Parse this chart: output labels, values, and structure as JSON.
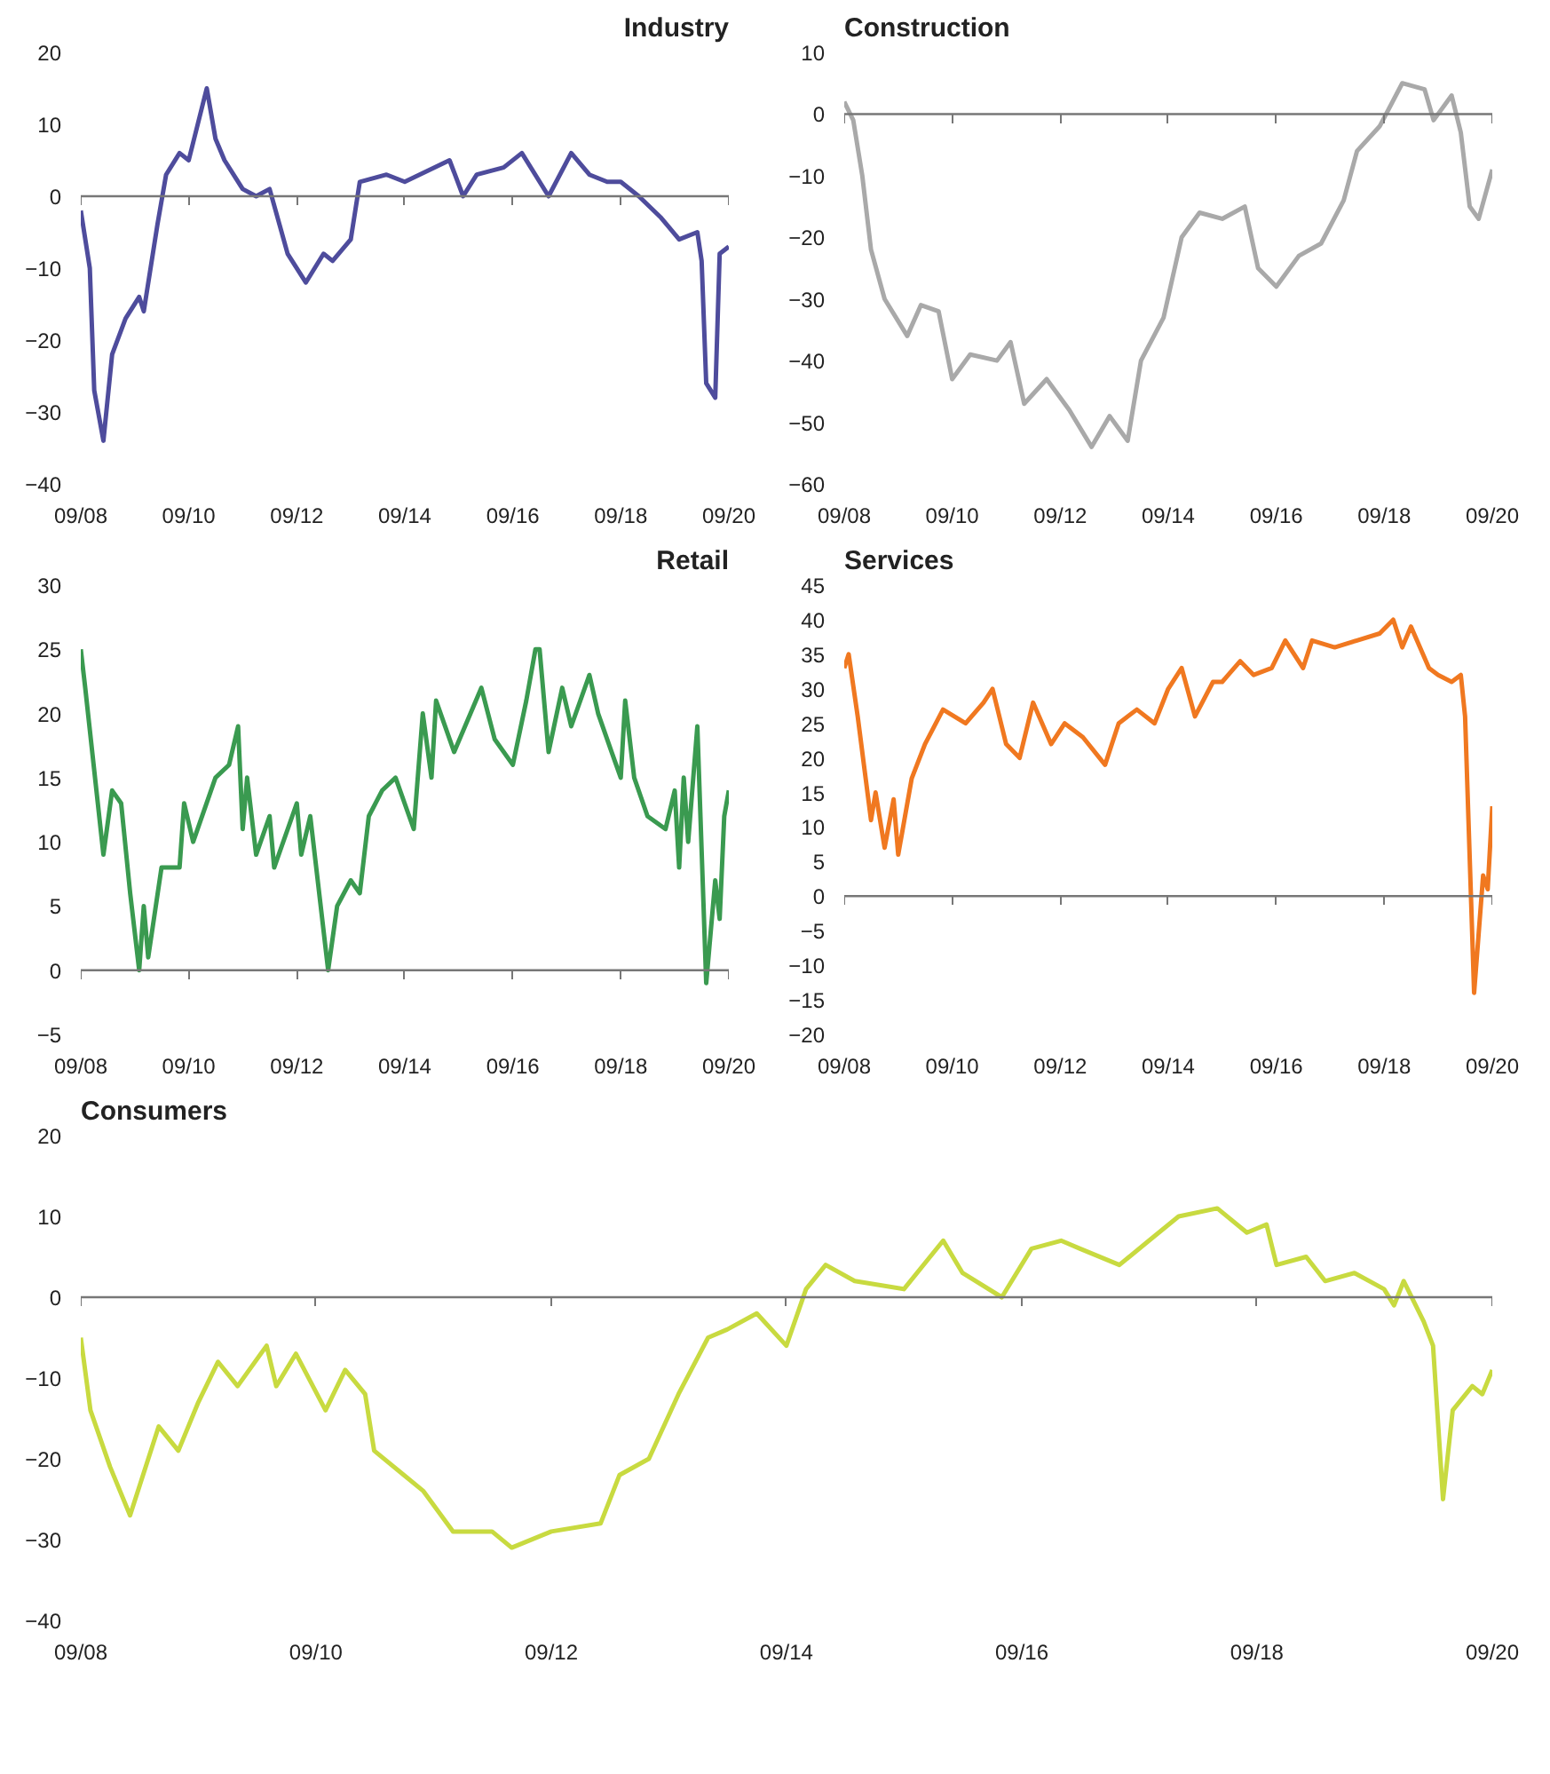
{
  "chart_data": [
    {
      "type": "line",
      "title": "Industry",
      "xlim": [
        "2008-09",
        "2020-09"
      ],
      "ylim": [
        -40,
        20
      ],
      "yticks": [
        -40,
        -30,
        -20,
        -10,
        0,
        10,
        20
      ],
      "xticks": [
        {
          "value": "2008-09",
          "label": "09/08"
        },
        {
          "value": "2010-09",
          "label": "09/10"
        },
        {
          "value": "2012-09",
          "label": "09/12"
        },
        {
          "value": "2014-09",
          "label": "09/14"
        },
        {
          "value": "2016-09",
          "label": "09/16"
        },
        {
          "value": "2018-09",
          "label": "09/18"
        },
        {
          "value": "2020-09",
          "label": "09/20"
        }
      ],
      "grid": false,
      "ref_lines": [
        {
          "axis": "y",
          "value": 0,
          "color": "#777777"
        }
      ],
      "series": [
        {
          "color": "#4e4c9c",
          "x": [
            "2008-09",
            "2008-11",
            "2008-12",
            "2009-02",
            "2009-04",
            "2009-07",
            "2009-10",
            "2009-11",
            "2010-02",
            "2010-04",
            "2010-07",
            "2010-09",
            "2010-11",
            "2011-01",
            "2011-03",
            "2011-05",
            "2011-09",
            "2011-12",
            "2012-03",
            "2012-07",
            "2012-11",
            "2013-03",
            "2013-05",
            "2013-09",
            "2013-11",
            "2014-05",
            "2014-09",
            "2015-07",
            "2015-10",
            "2016-01",
            "2016-07",
            "2016-11",
            "2017-05",
            "2017-10",
            "2018-02",
            "2018-06",
            "2018-09",
            "2019-01",
            "2019-06",
            "2019-10",
            "2020-02",
            "2020-03",
            "2020-04",
            "2020-06",
            "2020-07",
            "2020-09"
          ],
          "values": [
            -2,
            -10,
            -27,
            -34,
            -22,
            -17,
            -14,
            -16,
            -4,
            3,
            6,
            5,
            10,
            15,
            8,
            5,
            1,
            0,
            1,
            -8,
            -12,
            -8,
            -9,
            -6,
            2,
            3,
            2,
            5,
            0,
            3,
            4,
            6,
            0,
            6,
            3,
            2,
            2,
            0,
            -3,
            -6,
            -5,
            -9,
            -26,
            -28,
            -8,
            -7
          ]
        }
      ]
    },
    {
      "type": "line",
      "title": "Construction",
      "xlim": [
        "2008-09",
        "2020-09"
      ],
      "ylim": [
        -60,
        10
      ],
      "yticks": [
        -60,
        -50,
        -40,
        -30,
        -20,
        -10,
        0,
        10
      ],
      "xticks": [
        {
          "value": "2008-09",
          "label": "09/08"
        },
        {
          "value": "2010-09",
          "label": "09/10"
        },
        {
          "value": "2012-09",
          "label": "09/12"
        },
        {
          "value": "2014-09",
          "label": "09/14"
        },
        {
          "value": "2016-09",
          "label": "09/16"
        },
        {
          "value": "2018-09",
          "label": "09/18"
        },
        {
          "value": "2020-09",
          "label": "09/20"
        }
      ],
      "grid": false,
      "ref_lines": [
        {
          "axis": "y",
          "value": 0,
          "color": "#777777"
        }
      ],
      "series": [
        {
          "color": "#a9a9a9",
          "x": [
            "2008-09",
            "2008-11",
            "2009-01",
            "2009-03",
            "2009-06",
            "2009-11",
            "2010-02",
            "2010-06",
            "2010-09",
            "2011-01",
            "2011-07",
            "2011-10",
            "2012-01",
            "2012-06",
            "2012-11",
            "2013-04",
            "2013-08",
            "2013-12",
            "2014-03",
            "2014-08",
            "2014-12",
            "2015-04",
            "2015-09",
            "2016-02",
            "2016-05",
            "2016-09",
            "2017-02",
            "2017-07",
            "2017-12",
            "2018-03",
            "2018-08",
            "2019-01",
            "2019-06",
            "2019-08",
            "2019-12",
            "2020-02",
            "2020-04",
            "2020-06",
            "2020-09"
          ],
          "values": [
            2,
            -1,
            -10,
            -22,
            -30,
            -36,
            -31,
            -32,
            -43,
            -39,
            -40,
            -37,
            -47,
            -43,
            -48,
            -54,
            -49,
            -53,
            -40,
            -33,
            -20,
            -16,
            -17,
            -15,
            -25,
            -28,
            -23,
            -21,
            -14,
            -6,
            -2,
            5,
            4,
            -1,
            3,
            -3,
            -15,
            -17,
            -9
          ]
        }
      ]
    },
    {
      "type": "line",
      "title": "Retail",
      "xlim": [
        "2008-09",
        "2020-09"
      ],
      "ylim": [
        -5,
        30
      ],
      "yticks": [
        -5,
        0,
        5,
        10,
        15,
        20,
        25,
        30
      ],
      "xticks": [
        {
          "value": "2008-09",
          "label": "09/08"
        },
        {
          "value": "2010-09",
          "label": "09/10"
        },
        {
          "value": "2012-09",
          "label": "09/12"
        },
        {
          "value": "2014-09",
          "label": "09/14"
        },
        {
          "value": "2016-09",
          "label": "09/16"
        },
        {
          "value": "2018-09",
          "label": "09/18"
        },
        {
          "value": "2020-09",
          "label": "09/20"
        }
      ],
      "grid": false,
      "ref_lines": [
        {
          "axis": "y",
          "value": 0,
          "color": "#777777"
        }
      ],
      "series": [
        {
          "color": "#3a9a50",
          "x": [
            "2008-09",
            "2008-10",
            "2009-02",
            "2009-04",
            "2009-06",
            "2009-08",
            "2009-10",
            "2009-11",
            "2009-12",
            "2010-03",
            "2010-07",
            "2010-08",
            "2010-10",
            "2011-03",
            "2011-06",
            "2011-08",
            "2011-09",
            "2011-10",
            "2011-12",
            "2012-03",
            "2012-04",
            "2012-09",
            "2012-10",
            "2012-12",
            "2013-04",
            "2013-06",
            "2013-09",
            "2013-11",
            "2014-01",
            "2014-04",
            "2014-07",
            "2014-10",
            "2014-11",
            "2015-01",
            "2015-03",
            "2015-04",
            "2015-08",
            "2016-02",
            "2016-05",
            "2016-09",
            "2016-12",
            "2017-02",
            "2017-03",
            "2017-05",
            "2017-08",
            "2017-10",
            "2018-02",
            "2018-04",
            "2018-07",
            "2018-09",
            "2018-10",
            "2018-12",
            "2019-03",
            "2019-07",
            "2019-09",
            "2019-10",
            "2019-11",
            "2019-12",
            "2020-02",
            "2020-04",
            "2020-06",
            "2020-07",
            "2020-08",
            "2020-09"
          ],
          "values": [
            25,
            22,
            9,
            14,
            13,
            6,
            0,
            5,
            1,
            8,
            8,
            13,
            10,
            15,
            16,
            19,
            11,
            15,
            9,
            12,
            8,
            13,
            9,
            12,
            0,
            5,
            7,
            6,
            12,
            14,
            15,
            12,
            11,
            20,
            15,
            21,
            17,
            22,
            18,
            16,
            21,
            25,
            25,
            17,
            22,
            19,
            23,
            20,
            17,
            15,
            21,
            15,
            12,
            11,
            14,
            8,
            15,
            10,
            19,
            -1,
            7,
            4,
            12,
            14
          ]
        }
      ]
    },
    {
      "type": "line",
      "title": "Services",
      "xlim": [
        "2008-09",
        "2020-09"
      ],
      "ylim": [
        -20,
        45
      ],
      "yticks": [
        -20,
        -15,
        -10,
        -5,
        0,
        5,
        10,
        15,
        20,
        25,
        30,
        35,
        40,
        45
      ],
      "xticks": [
        {
          "value": "2008-09",
          "label": "09/08"
        },
        {
          "value": "2010-09",
          "label": "09/10"
        },
        {
          "value": "2012-09",
          "label": "09/12"
        },
        {
          "value": "2014-09",
          "label": "09/14"
        },
        {
          "value": "2016-09",
          "label": "09/16"
        },
        {
          "value": "2018-09",
          "label": "09/18"
        },
        {
          "value": "2020-09",
          "label": "09/20"
        }
      ],
      "grid": false,
      "ref_lines": [
        {
          "axis": "y",
          "value": 0,
          "color": "#777777"
        }
      ],
      "series": [
        {
          "color": "#f07820",
          "x": [
            "2008-09",
            "2008-10",
            "2008-12",
            "2009-03",
            "2009-04",
            "2009-06",
            "2009-08",
            "2009-09",
            "2009-12",
            "2010-03",
            "2010-07",
            "2010-12",
            "2011-04",
            "2011-06",
            "2011-09",
            "2011-12",
            "2012-03",
            "2012-07",
            "2012-10",
            "2013-02",
            "2013-07",
            "2013-10",
            "2014-02",
            "2014-06",
            "2014-09",
            "2014-12",
            "2015-03",
            "2015-07",
            "2015-09",
            "2016-01",
            "2016-04",
            "2016-08",
            "2016-11",
            "2017-03",
            "2017-05",
            "2017-10",
            "2018-03",
            "2018-08",
            "2018-11",
            "2019-01",
            "2019-03",
            "2019-07",
            "2019-09",
            "2019-12",
            "2020-02",
            "2020-03",
            "2020-05",
            "2020-07",
            "2020-08",
            "2020-09"
          ],
          "values": [
            33,
            35,
            26,
            11,
            15,
            7,
            14,
            6,
            17,
            22,
            27,
            25,
            28,
            30,
            22,
            20,
            28,
            22,
            25,
            23,
            19,
            25,
            27,
            25,
            30,
            33,
            26,
            31,
            31,
            34,
            32,
            33,
            37,
            33,
            37,
            36,
            37,
            38,
            40,
            36,
            39,
            33,
            32,
            31,
            32,
            26,
            -14,
            3,
            1,
            13
          ]
        }
      ]
    },
    {
      "type": "line",
      "title": "Consumers",
      "xlim": [
        "2008-09",
        "2020-09"
      ],
      "ylim": [
        -40,
        20
      ],
      "yticks": [
        -40,
        -30,
        -20,
        -10,
        0,
        10,
        20
      ],
      "xticks": [
        {
          "value": "2008-09",
          "label": "09/08"
        },
        {
          "value": "2010-09",
          "label": "09/10"
        },
        {
          "value": "2012-09",
          "label": "09/12"
        },
        {
          "value": "2014-09",
          "label": "09/14"
        },
        {
          "value": "2016-09",
          "label": "09/16"
        },
        {
          "value": "2018-09",
          "label": "09/18"
        },
        {
          "value": "2020-09",
          "label": "09/20"
        }
      ],
      "grid": false,
      "ref_lines": [
        {
          "axis": "y",
          "value": 0,
          "color": "#777777"
        }
      ],
      "series": [
        {
          "color": "#c8da40",
          "x": [
            "2008-09",
            "2008-10",
            "2008-12",
            "2009-02",
            "2009-05",
            "2009-07",
            "2009-09",
            "2009-11",
            "2010-01",
            "2010-04",
            "2010-05",
            "2010-07",
            "2010-10",
            "2010-12",
            "2011-02",
            "2011-03",
            "2011-06",
            "2011-08",
            "2011-11",
            "2012-03",
            "2012-05",
            "2012-09",
            "2013-02",
            "2013-04",
            "2013-07",
            "2013-10",
            "2014-01",
            "2014-03",
            "2014-06",
            "2014-09",
            "2014-11",
            "2015-01",
            "2015-04",
            "2015-09",
            "2016-01",
            "2016-03",
            "2016-07",
            "2016-10",
            "2017-01",
            "2017-03",
            "2017-07",
            "2017-10",
            "2018-01",
            "2018-05",
            "2018-08",
            "2018-10",
            "2018-11",
            "2019-02",
            "2019-04",
            "2019-07",
            "2019-10",
            "2019-11",
            "2019-12",
            "2020-02",
            "2020-03",
            "2020-04",
            "2020-05",
            "2020-07",
            "2020-08",
            "2020-09"
          ],
          "values": [
            -5,
            -14,
            -21,
            -27,
            -16,
            -19,
            -13,
            -8,
            -11,
            -6,
            -11,
            -7,
            -14,
            -9,
            -12,
            -19,
            -22,
            -24,
            -29,
            -29,
            -31,
            -29,
            -28,
            -22,
            -20,
            -12,
            -5,
            -4,
            -2,
            -6,
            1,
            4,
            2,
            1,
            7,
            3,
            0,
            6,
            7,
            6,
            4,
            7,
            10,
            11,
            8,
            9,
            4,
            5,
            2,
            3,
            1,
            -1,
            2,
            -3,
            -6,
            -25,
            -14,
            -11,
            -12,
            -9
          ]
        }
      ]
    }
  ]
}
